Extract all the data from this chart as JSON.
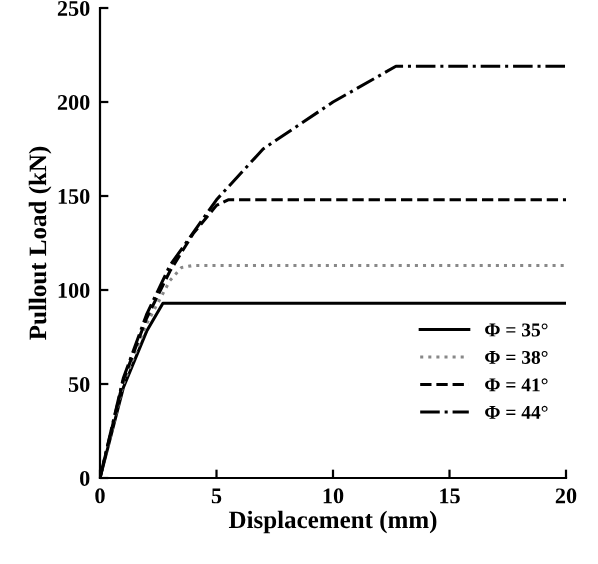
{
  "chart_data": {
    "type": "line",
    "xlabel": "Displacement (mm)",
    "ylabel": "Pullout Load (kN)",
    "xlim": [
      0,
      20
    ],
    "xticks": [
      0,
      5,
      10,
      15,
      20
    ],
    "ylim": [
      0,
      250
    ],
    "yticks": [
      0,
      50,
      100,
      150,
      200,
      250
    ],
    "grid": false,
    "legend": "bottom right",
    "marker": "none",
    "series": [
      {
        "name": "Φ = 35°",
        "color": "#000000",
        "line_style": "solid",
        "x": [
          0,
          1,
          2,
          2.7,
          20
        ],
        "values": [
          0,
          48,
          78,
          93,
          93
        ]
      },
      {
        "name": "Φ = 38°",
        "color": "#888888",
        "line_style": "dotted",
        "x": [
          0,
          1,
          2,
          3,
          3.5,
          4,
          20
        ],
        "values": [
          0,
          50,
          82,
          105,
          112,
          113,
          113
        ]
      },
      {
        "name": "Φ = 41°",
        "color": "#000000",
        "line_style": "dashed",
        "x": [
          0,
          1,
          2,
          3,
          4,
          5,
          5.5,
          20
        ],
        "values": [
          0,
          52,
          85,
          110,
          130,
          145,
          148,
          148
        ]
      },
      {
        "name": "Φ = 44°",
        "color": "#000000",
        "line_style": "dashdot",
        "x": [
          0,
          1,
          2,
          3,
          5,
          7,
          10,
          12.7,
          20
        ],
        "values": [
          0,
          53,
          87,
          113,
          148,
          175,
          200,
          219,
          219
        ]
      }
    ]
  }
}
